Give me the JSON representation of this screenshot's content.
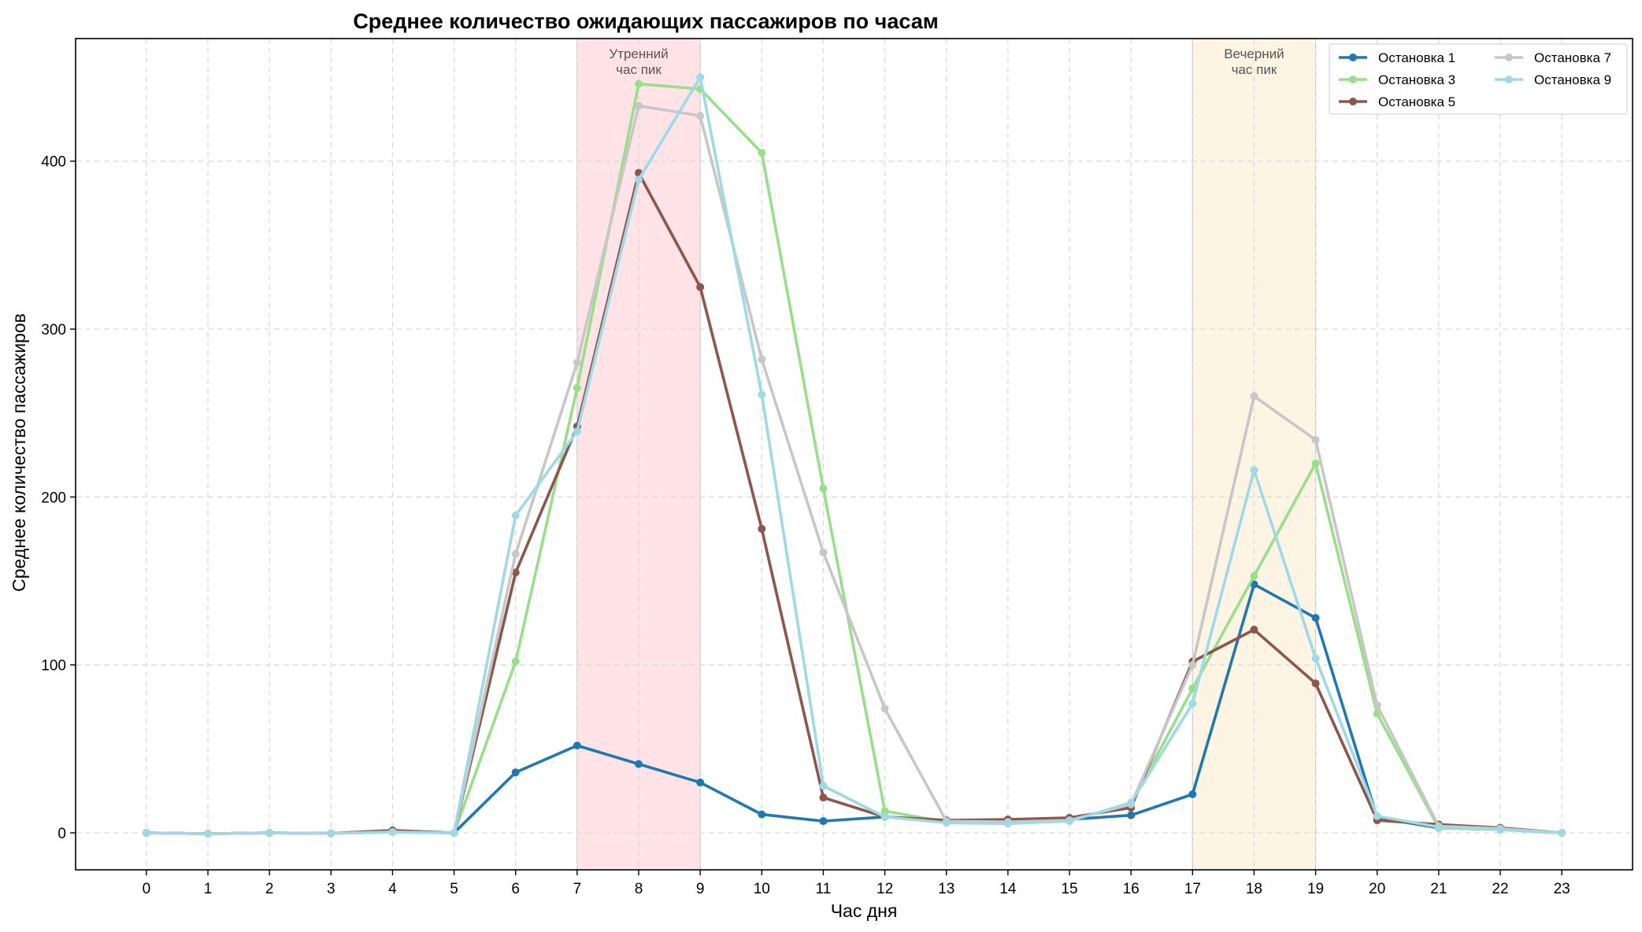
{
  "chart_data": {
    "type": "line",
    "title": "Среднее количество ожидающих пассажиров по часам",
    "xlabel": "Час дня",
    "ylabel": "Среднее количество пассажиров",
    "x": [
      0,
      1,
      2,
      3,
      4,
      5,
      6,
      7,
      8,
      9,
      10,
      11,
      12,
      13,
      14,
      15,
      16,
      17,
      18,
      19,
      20,
      21,
      22,
      23
    ],
    "xlim": [
      -1.15,
      24.15
    ],
    "ylim": [
      -22,
      473
    ],
    "yticks": [
      0,
      100,
      200,
      300,
      400
    ],
    "grid": true,
    "legend_position": "top-right",
    "bands": [
      {
        "from": 7,
        "to": 9,
        "label_line1": "Утренний",
        "label_line2": "час пик",
        "color": "#ffc0c8"
      },
      {
        "from": 17,
        "to": 19,
        "label_line1": "Вечерний",
        "label_line2": "час пик",
        "color": "#fae6c0"
      }
    ],
    "series": [
      {
        "name": "Остановка 1",
        "color": "#1f77b4",
        "values": [
          0,
          -0.5,
          0,
          -0.3,
          0.5,
          0,
          36,
          52,
          41,
          30,
          11,
          7,
          9.5,
          7,
          6.5,
          8,
          10.5,
          23,
          148,
          128,
          9,
          3,
          2,
          0
        ]
      },
      {
        "name": "Остановка 3",
        "color": "#98df8a",
        "values": [
          0,
          -0.5,
          0,
          -0.3,
          0.5,
          0,
          102,
          265,
          446,
          443,
          405,
          205,
          13,
          6.5,
          6.5,
          7.5,
          17,
          86,
          153,
          220,
          71,
          3,
          2,
          0
        ]
      },
      {
        "name": "Остановка 5",
        "color": "#8c564b",
        "values": [
          0,
          -0.5,
          0,
          -0.3,
          1.5,
          0,
          155,
          242,
          393,
          325,
          181,
          21,
          9.5,
          7.5,
          8,
          9,
          15,
          102,
          121,
          89,
          7.5,
          5,
          3,
          0
        ]
      },
      {
        "name": "Остановка 7",
        "color": "#c7c7c7",
        "values": [
          0,
          -0.5,
          0,
          -0.3,
          0.5,
          0,
          166,
          280,
          433,
          427,
          282,
          167,
          74,
          7,
          6.5,
          7.5,
          17,
          100,
          260,
          234,
          76,
          4,
          2.5,
          0
        ]
      },
      {
        "name": "Остановка 9",
        "color": "#9edae5",
        "values": [
          0,
          -0.5,
          0,
          -0.3,
          0.5,
          0,
          189,
          239,
          389,
          450,
          261,
          28,
          9.5,
          6,
          5.5,
          7,
          18,
          77,
          216,
          104,
          10,
          3.5,
          2,
          0
        ]
      }
    ],
    "legend_order": [
      0,
      1,
      2,
      3,
      4
    ]
  }
}
